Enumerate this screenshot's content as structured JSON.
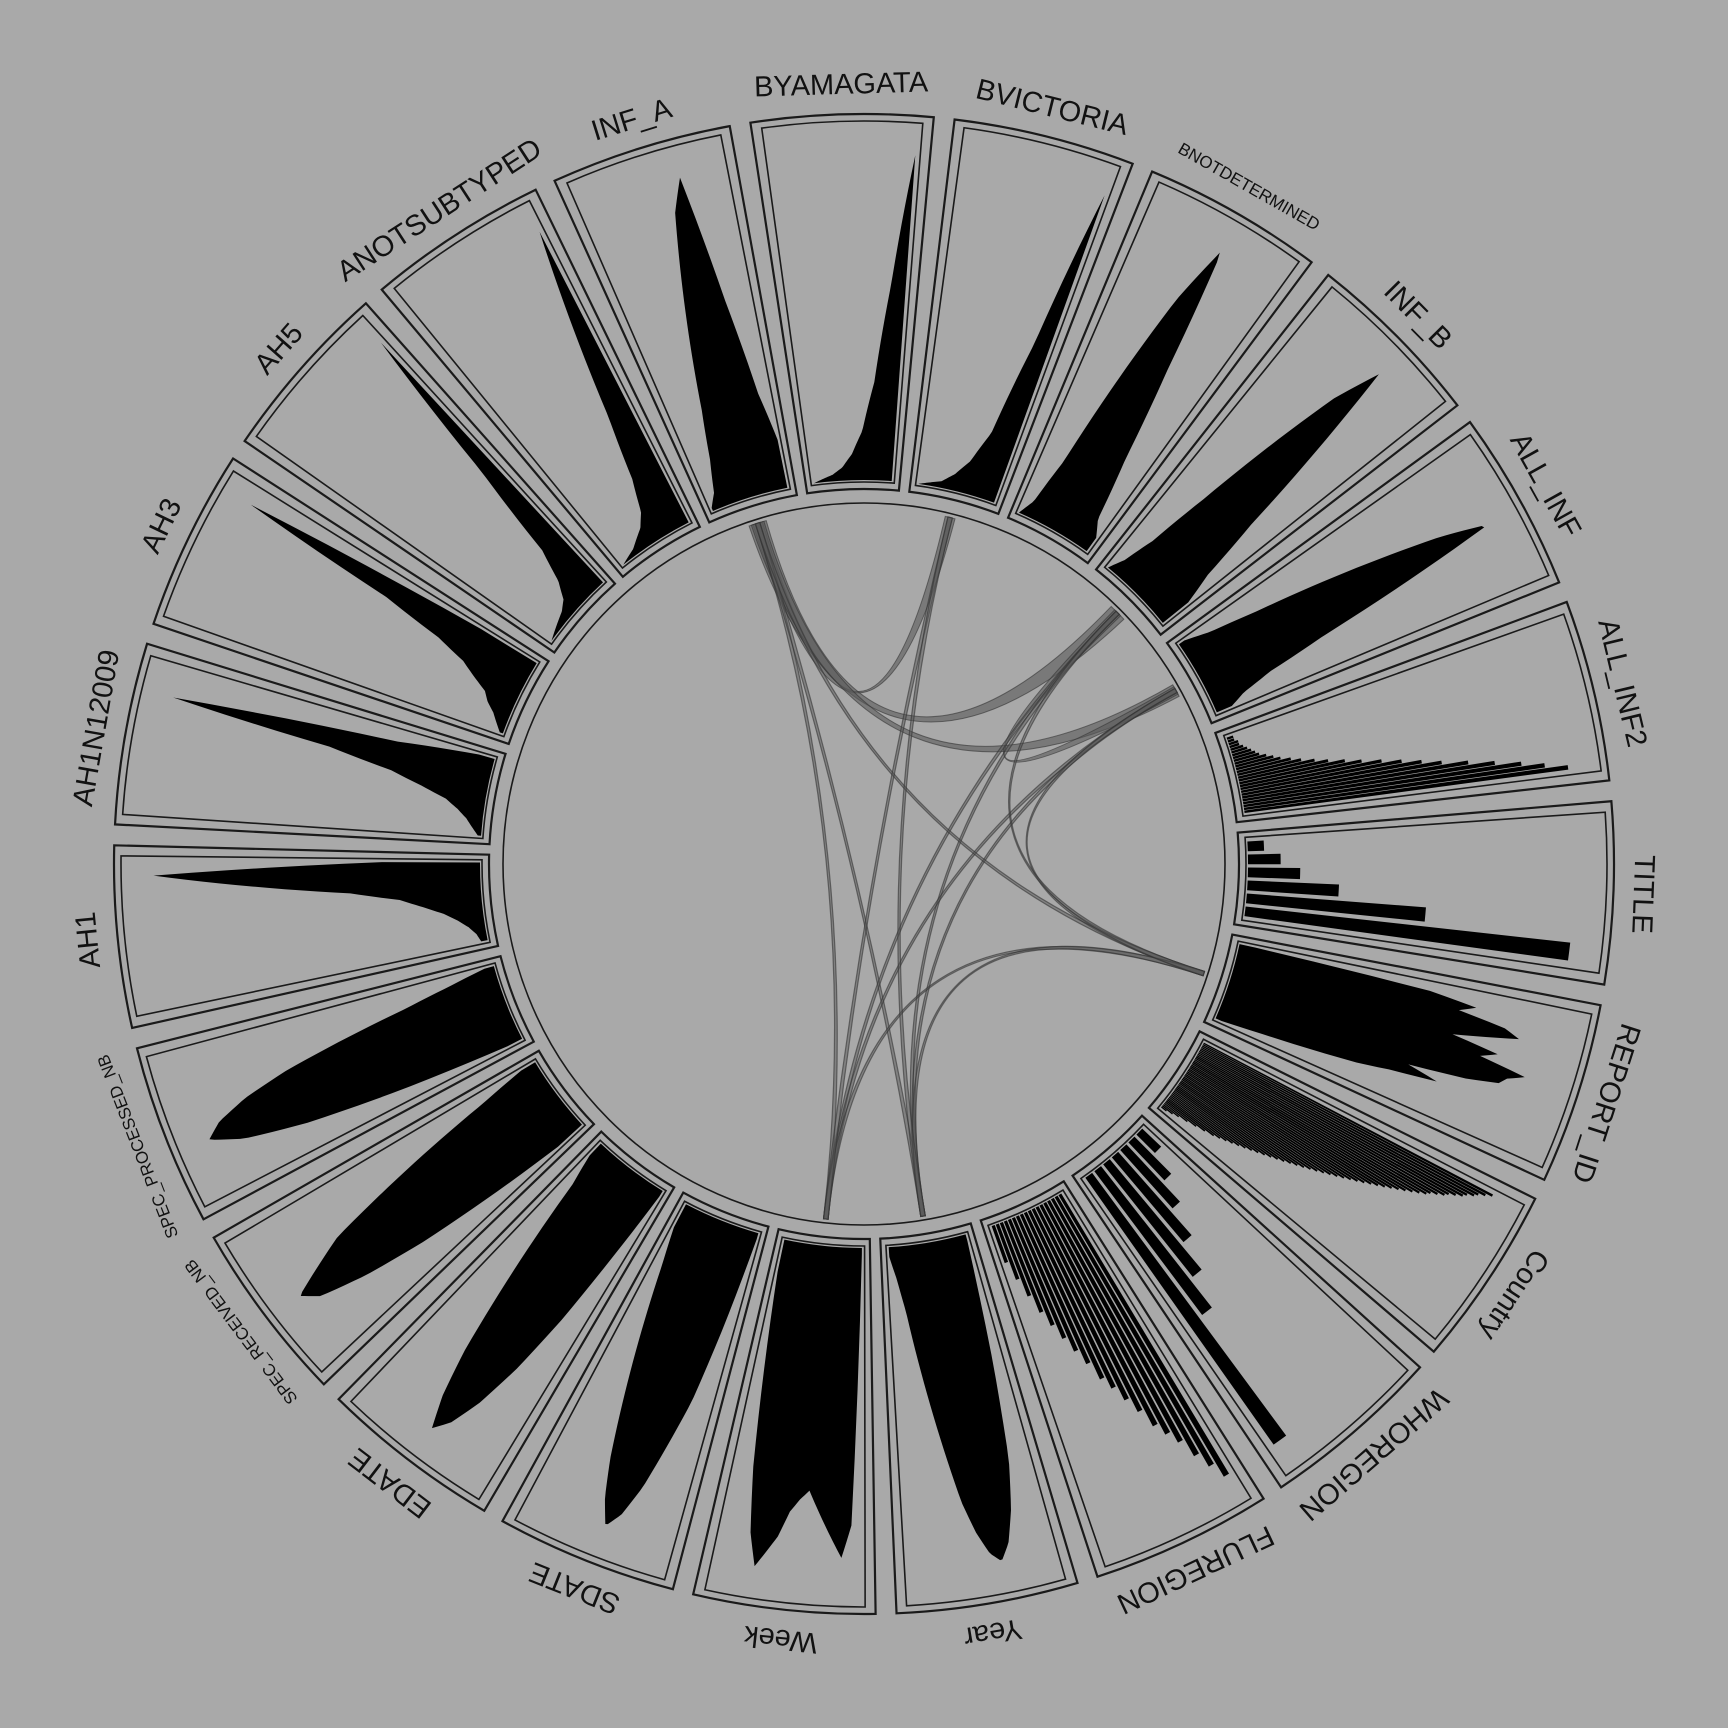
{
  "segments": [
    {
      "label": "TITLE",
      "kind": "bars",
      "size": "l",
      "shape": [
        0.05,
        0.1,
        0.16,
        0.28,
        0.55,
        1.0
      ]
    },
    {
      "label": "REPORT_ID",
      "kind": "density",
      "size": "l",
      "shape": [
        0.05,
        0.6,
        0.75,
        0.7,
        0.85,
        0.9,
        0.8,
        0.7,
        0.85,
        0.8,
        0.95,
        0.9,
        0.88,
        0.78,
        0.6,
        0.7,
        0.55,
        0.45,
        0.3,
        0.15,
        0.02
      ]
    },
    {
      "label": "Country",
      "kind": "hist",
      "size": "l",
      "shape": [
        1.0,
        0.98,
        0.96,
        0.95,
        0.93,
        0.92,
        0.9,
        0.88,
        0.87,
        0.85,
        0.83,
        0.82,
        0.8,
        0.78,
        0.76,
        0.74,
        0.72,
        0.7,
        0.68,
        0.66,
        0.64,
        0.62,
        0.6,
        0.58,
        0.56,
        0.54,
        0.52,
        0.5,
        0.48,
        0.46,
        0.44,
        0.42,
        0.4,
        0.38,
        0.36,
        0.34,
        0.32,
        0.3,
        0.28,
        0.26,
        0.24,
        0.22,
        0.2,
        0.18,
        0.15,
        0.12,
        0.09,
        0.06,
        0.04,
        0.02
      ]
    },
    {
      "label": "WHOREGION",
      "kind": "bars",
      "size": "l",
      "shape": [
        0.08,
        0.16,
        0.24,
        0.34,
        0.44,
        0.55,
        1.0
      ]
    },
    {
      "label": "FLUREGION",
      "kind": "bars",
      "size": "l",
      "shape": [
        1.0,
        0.95,
        0.9,
        0.84,
        0.8,
        0.76,
        0.7,
        0.65,
        0.6,
        0.56,
        0.5,
        0.45,
        0.4,
        0.35,
        0.3,
        0.24,
        0.18,
        0.12
      ]
    },
    {
      "label": "Year",
      "kind": "density",
      "size": "l",
      "shape": [
        0.02,
        0.4,
        0.7,
        0.85,
        0.95,
        1.0,
        0.97,
        0.9,
        0.8,
        0.65,
        0.5,
        0.35,
        0.2,
        0.1,
        0.03
      ]
    },
    {
      "label": "Week",
      "kind": "density",
      "size": "l",
      "shape": [
        0.02,
        0.85,
        0.95,
        0.9,
        0.85,
        0.8,
        0.75,
        0.78,
        0.82,
        0.9,
        0.95,
        1.0,
        0.9,
        0.7,
        0.4,
        0.1
      ]
    },
    {
      "label": "SDATE",
      "kind": "density",
      "size": "l",
      "shape": [
        0.02,
        0.3,
        0.55,
        0.7,
        0.85,
        0.95,
        1.0,
        0.92,
        0.8,
        0.65,
        0.5,
        0.35,
        0.2,
        0.08
      ]
    },
    {
      "label": "EDATE",
      "kind": "density",
      "size": "l",
      "shape": [
        0.02,
        0.25,
        0.5,
        0.7,
        0.85,
        0.95,
        1.0,
        0.9,
        0.75,
        0.55,
        0.35,
        0.15,
        0.05
      ]
    },
    {
      "label": "SPEC_RECEIVED_NB",
      "kind": "density",
      "size": "s",
      "shape": [
        0.1,
        0.35,
        0.6,
        0.8,
        0.95,
        1.0,
        0.9,
        0.8,
        0.6,
        0.4,
        0.2,
        0.05
      ]
    },
    {
      "label": "SPEC_PROCESSED_NB",
      "kind": "density",
      "size": "s",
      "shape": [
        0.05,
        0.4,
        0.7,
        0.9,
        1.0,
        0.95,
        0.85,
        0.7,
        0.5,
        0.3,
        0.15,
        0.03
      ]
    },
    {
      "label": "AH1",
      "kind": "density",
      "size": "l",
      "shape": [
        0.02,
        0.03,
        0.05,
        0.08,
        0.12,
        0.18,
        0.25,
        0.4,
        0.7,
        1.0,
        0.3
      ]
    },
    {
      "label": "AH1N12009",
      "kind": "density",
      "size": "l",
      "shape": [
        0.01,
        0.03,
        0.05,
        0.08,
        0.12,
        0.2,
        0.3,
        0.5,
        1.0,
        0.3,
        0.05
      ]
    },
    {
      "label": "AH3",
      "kind": "density",
      "size": "l",
      "shape": [
        0.01,
        0.03,
        0.05,
        0.08,
        0.1,
        0.15,
        0.2,
        0.3,
        0.5,
        1.0,
        0.2
      ]
    },
    {
      "label": "AH5",
      "kind": "density",
      "size": "l",
      "shape": [
        0.0,
        0.01,
        0.02,
        0.03,
        0.05,
        0.1,
        0.2,
        0.5,
        1.0
      ]
    },
    {
      "label": "ANOTSUBTYPED",
      "kind": "density",
      "size": "l",
      "shape": [
        0.0,
        0.01,
        0.02,
        0.04,
        0.06,
        0.1,
        0.2,
        0.4,
        0.7,
        1.0
      ]
    },
    {
      "label": "INF_A",
      "kind": "density",
      "size": "l",
      "shape": [
        0.01,
        0.05,
        0.15,
        0.3,
        0.5,
        0.7,
        0.9,
        1.0,
        0.6,
        0.3,
        0.15
      ]
    },
    {
      "label": "BYAMAGATA",
      "kind": "density",
      "size": "l",
      "shape": [
        0.0,
        0.01,
        0.02,
        0.04,
        0.08,
        0.15,
        0.3,
        0.6,
        1.0
      ]
    },
    {
      "label": "BVICTORIA",
      "kind": "density",
      "size": "l",
      "shape": [
        0.0,
        0.01,
        0.02,
        0.05,
        0.1,
        0.2,
        0.5,
        1.0
      ]
    },
    {
      "label": "BNOTDETERMINED",
      "kind": "density",
      "size": "s",
      "shape": [
        0.0,
        0.05,
        0.2,
        0.5,
        0.8,
        1.0,
        0.6,
        0.3,
        0.1,
        0.05
      ]
    },
    {
      "label": "INF_B",
      "kind": "density",
      "size": "l",
      "shape": [
        0.0,
        0.05,
        0.15,
        0.35,
        0.6,
        0.85,
        1.0,
        0.7,
        0.4,
        0.2,
        0.1
      ]
    },
    {
      "label": "ALL_INF",
      "kind": "density",
      "size": "l",
      "shape": [
        0.02,
        0.1,
        0.25,
        0.45,
        0.65,
        0.85,
        1.0,
        0.7,
        0.4,
        0.2,
        0.1,
        0.05
      ]
    },
    {
      "label": "ALL_INF2",
      "kind": "hist",
      "size": "l",
      "shape": [
        0.02,
        0.02,
        0.03,
        0.03,
        0.04,
        0.05,
        0.06,
        0.07,
        0.08,
        0.1,
        0.12,
        0.14,
        0.17,
        0.2,
        0.24,
        0.28,
        0.33,
        0.38,
        0.44,
        0.5,
        0.56,
        0.62,
        0.7,
        0.78,
        0.86,
        0.93,
        1.0
      ]
    }
  ],
  "links": [
    {
      "from": "INF_A",
      "to": "BVICTORIA",
      "width": 0.42
    },
    {
      "from": "INF_A",
      "to": "INF_B",
      "width": 0.75
    },
    {
      "from": "INF_A",
      "to": "ALL_INF",
      "width": 0.55
    },
    {
      "from": "INF_B",
      "to": "ALL_INF",
      "width": 0.35
    },
    {
      "from": "INF_A",
      "to": "Week",
      "width": 0.05
    },
    {
      "from": "INF_A",
      "to": "Year",
      "width": 0.05
    },
    {
      "from": "INF_B",
      "to": "Week",
      "width": 0.04
    },
    {
      "from": "INF_B",
      "to": "Year",
      "width": 0.04
    },
    {
      "from": "ALL_INF",
      "to": "Week",
      "width": 0.04
    },
    {
      "from": "ALL_INF",
      "to": "Year",
      "width": 0.04
    },
    {
      "from": "ALL_INF",
      "to": "REPORT_ID",
      "width": 0.04
    },
    {
      "from": "INF_A",
      "to": "REPORT_ID",
      "width": 0.04
    },
    {
      "from": "REPORT_ID",
      "to": "Week",
      "width": 0.04
    },
    {
      "from": "REPORT_ID",
      "to": "Year",
      "width": 0.04
    },
    {
      "from": "BVICTORIA",
      "to": "Week",
      "width": 0.04
    },
    {
      "from": "BVICTORIA",
      "to": "Year",
      "width": 0.04
    },
    {
      "from": "INF_B",
      "to": "REPORT_ID",
      "width": 0.03
    }
  ],
  "colors": {
    "background": "#a9a9a9",
    "ink": "#000000",
    "frame": "#1a1a1a",
    "link_fill": "#5a5a5a"
  }
}
